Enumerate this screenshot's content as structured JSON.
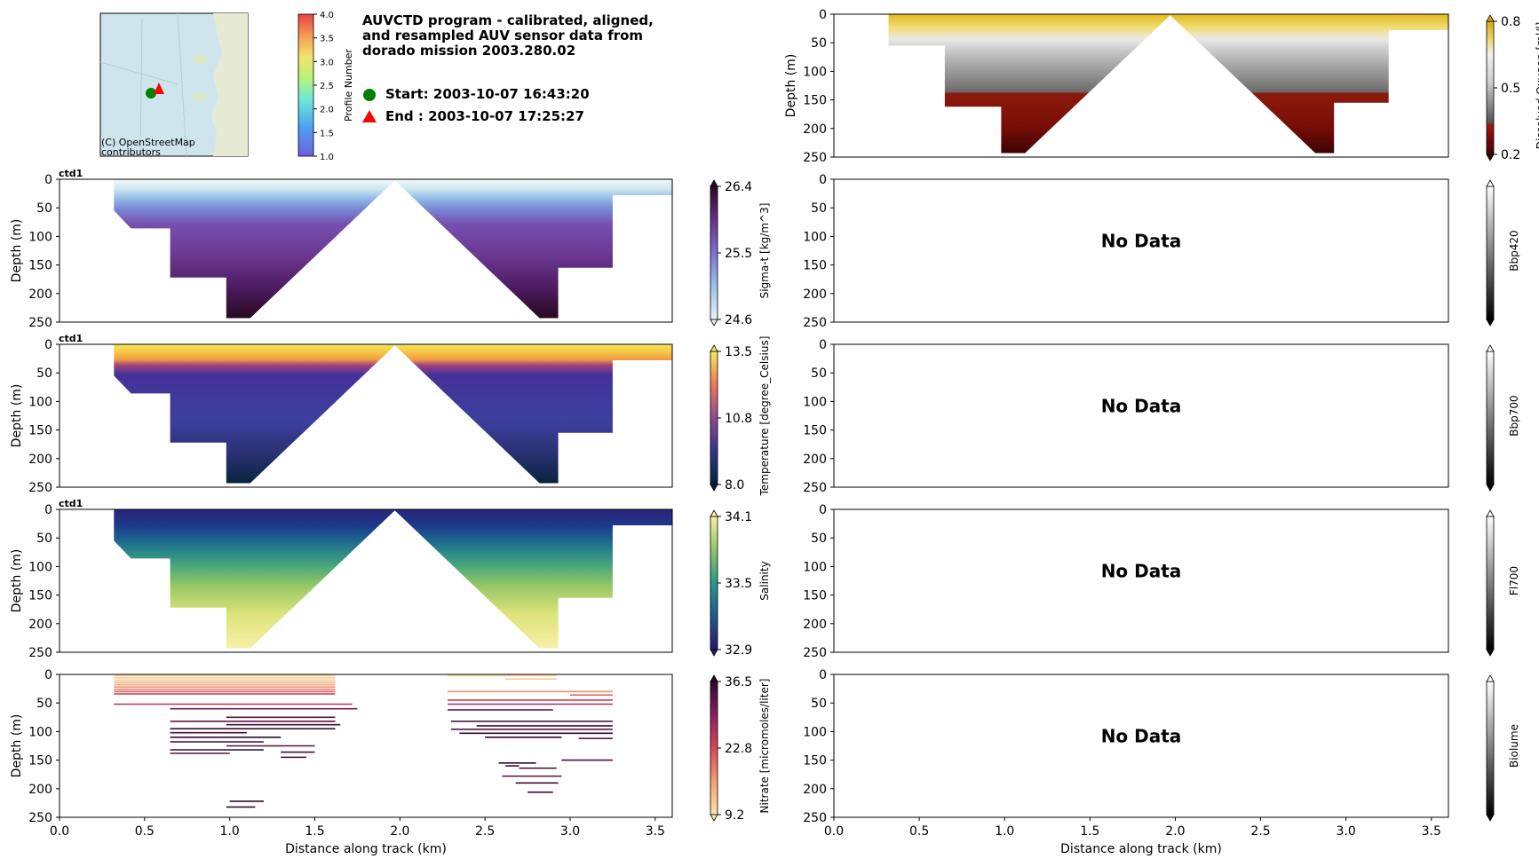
{
  "header": {
    "title_lines": [
      "AUVCTD program - calibrated, aligned,",
      "and resampled AUV sensor data from",
      "dorado mission 2003.280.02"
    ],
    "start_label": "Start: 2003-10-07 16:43:20",
    "end_label": "End  : 2003-10-07 17:25:27",
    "map_attribution": [
      "(C) OpenStreetMap",
      "contributors"
    ]
  },
  "profile_colorbar": {
    "label": "Profile Number",
    "ticks": [
      "4.0",
      "3.5",
      "3.0",
      "2.5",
      "2.0",
      "1.5",
      "1.0"
    ]
  },
  "colors": {
    "start_marker": "#008000",
    "end_marker": "#ff0000",
    "map_water": "#cfe5ee",
    "map_land": "#e8ecd8"
  },
  "chart_data": [
    {
      "id": "sigma",
      "type": "heatmap",
      "title": "ctd1",
      "xlabel": "",
      "ylabel": "Depth (m)",
      "ylim": [
        250,
        0
      ],
      "xlim": [
        0,
        3.6
      ],
      "yticks": [
        "0",
        "50",
        "100",
        "150",
        "200",
        "250"
      ],
      "xticks": [],
      "colorbar": {
        "label": "Sigma-t [kg/m^3]",
        "ticks": [
          "26.4",
          "25.5",
          "24.6"
        ],
        "range": [
          24.6,
          26.4
        ],
        "cmap": "dense"
      }
    },
    {
      "id": "oxygen",
      "type": "heatmap",
      "title": "",
      "xlabel": "",
      "ylabel": "Depth (m)",
      "ylim": [
        250,
        0
      ],
      "xlim": [
        0,
        3.6
      ],
      "yticks": [
        "0",
        "50",
        "100",
        "150",
        "200",
        "250"
      ],
      "xticks": [],
      "colorbar": {
        "label": "Dissolved Oxygen [ml/l]",
        "ticks": [
          "0.8",
          "0.5",
          "0.2"
        ],
        "range": [
          0.2,
          0.8
        ],
        "cmap": "oxy"
      }
    },
    {
      "id": "temperature",
      "type": "heatmap",
      "title": "ctd1",
      "xlabel": "",
      "ylabel": "Depth (m)",
      "ylim": [
        250,
        0
      ],
      "xlim": [
        0,
        3.6
      ],
      "yticks": [
        "0",
        "50",
        "100",
        "150",
        "200",
        "250"
      ],
      "xticks": [],
      "colorbar": {
        "label": "Temperature [degree_Celsius]",
        "ticks": [
          "13.5",
          "10.8",
          "8.0"
        ],
        "range": [
          8.0,
          13.5
        ],
        "cmap": "thermal"
      }
    },
    {
      "id": "bbp420",
      "type": "heatmap",
      "title": "",
      "xlabel": "",
      "ylabel": "",
      "ylim": [
        250,
        0
      ],
      "xlim": [
        0,
        3.6
      ],
      "yticks": [
        "0",
        "50",
        "100",
        "150",
        "200",
        "250"
      ],
      "xticks": [],
      "no_data": "No Data",
      "colorbar": {
        "label": "Bbp420",
        "ticks": [],
        "cmap": "gray"
      }
    },
    {
      "id": "salinity",
      "type": "heatmap",
      "title": "ctd1",
      "xlabel": "",
      "ylabel": "Depth (m)",
      "ylim": [
        250,
        0
      ],
      "xlim": [
        0,
        3.6
      ],
      "yticks": [
        "0",
        "50",
        "100",
        "150",
        "200",
        "250"
      ],
      "xticks": [],
      "colorbar": {
        "label": "Salinity",
        "ticks": [
          "34.1",
          "33.5",
          "32.9"
        ],
        "range": [
          32.9,
          34.1
        ],
        "cmap": "haline"
      }
    },
    {
      "id": "bbp700",
      "type": "heatmap",
      "title": "",
      "xlabel": "",
      "ylabel": "",
      "ylim": [
        250,
        0
      ],
      "xlim": [
        0,
        3.6
      ],
      "yticks": [
        "0",
        "50",
        "100",
        "150",
        "200",
        "250"
      ],
      "xticks": [],
      "no_data": "No Data",
      "colorbar": {
        "label": "Bbp700",
        "ticks": [],
        "cmap": "gray"
      }
    },
    {
      "id": "nitrate",
      "type": "heatmap",
      "title": "",
      "xlabel": "Distance along track (km)",
      "ylabel": "Depth (m)",
      "ylim": [
        250,
        0
      ],
      "xlim": [
        0,
        3.6
      ],
      "yticks": [
        "0",
        "50",
        "100",
        "150",
        "200",
        "250"
      ],
      "xticks": [
        "0.0",
        "0.5",
        "1.0",
        "1.5",
        "2.0",
        "2.5",
        "3.0",
        "3.5"
      ],
      "colorbar": {
        "label": "Nitrate [micromoles/liter]",
        "ticks": [
          "36.5",
          "22.8",
          "9.2"
        ],
        "range": [
          9.2,
          36.5
        ],
        "cmap": "nitrate"
      }
    },
    {
      "id": "fl700",
      "type": "heatmap",
      "title": "",
      "xlabel": "",
      "ylabel": "",
      "ylim": [
        250,
        0
      ],
      "xlim": [
        0,
        3.6
      ],
      "yticks": [
        "0",
        "50",
        "100",
        "150",
        "200",
        "250"
      ],
      "xticks": [],
      "no_data": "No Data",
      "colorbar": {
        "label": "Fl700",
        "ticks": [],
        "cmap": "gray"
      }
    },
    {
      "id": "biolume",
      "type": "heatmap",
      "title": "",
      "xlabel": "Distance along track (km)",
      "ylabel": "",
      "ylim": [
        250,
        0
      ],
      "xlim": [
        0,
        3.6
      ],
      "yticks": [
        "0",
        "50",
        "100",
        "150",
        "200",
        "250"
      ],
      "xticks": [
        "0.0",
        "0.5",
        "1.0",
        "1.5",
        "2.0",
        "2.5",
        "3.0",
        "3.5"
      ],
      "no_data": "No Data",
      "colorbar": {
        "label": "Biolume",
        "ticks": [],
        "cmap": "gray"
      }
    }
  ]
}
